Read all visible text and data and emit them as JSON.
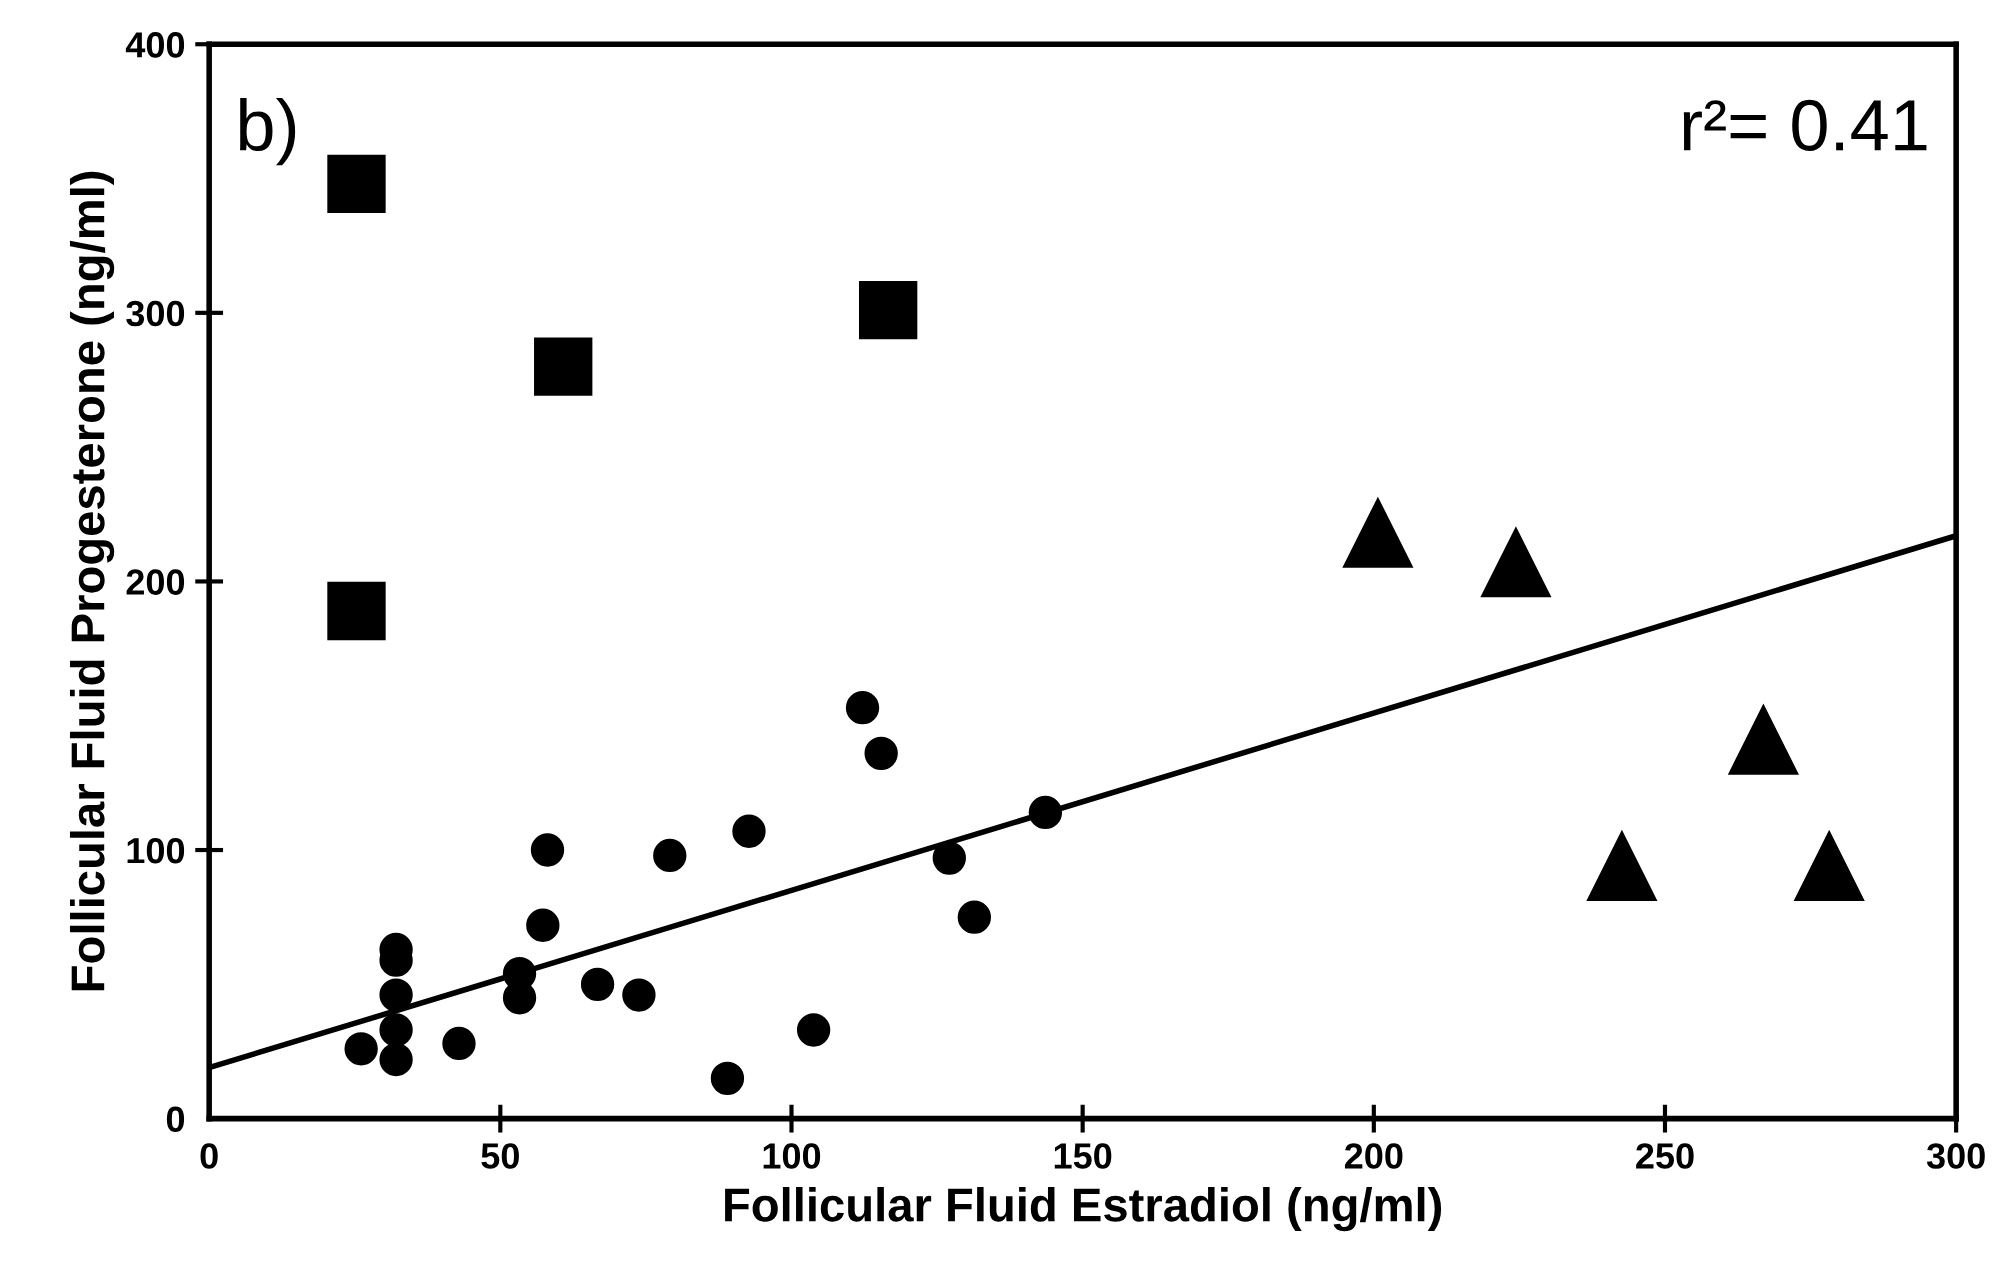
{
  "chart_data": {
    "type": "scatter",
    "xlabel": "Follicular Fluid Estradiol (ng/ml)",
    "ylabel": "Follicular Fluid Progesterone (ng/ml)",
    "xlim": [
      0,
      300
    ],
    "ylim": [
      0,
      400
    ],
    "xticks": [
      0,
      50,
      100,
      150,
      200,
      250,
      300
    ],
    "yticks": [
      0,
      100,
      200,
      300,
      400
    ],
    "grid": false,
    "legend": false,
    "annotations": [
      "b)",
      "r²= 0.41"
    ],
    "series": [
      {
        "marker": "circle",
        "color": "#000000",
        "x": [
          26.1,
          32.1,
          32.1,
          32.1,
          32.1,
          32.1,
          42.9,
          53.3,
          53.3,
          57.3,
          58.1,
          66.7,
          73.8,
          79.1,
          92.7,
          89,
          103.8,
          112.2,
          115.4,
          127.1,
          131.4,
          143.6
        ],
        "values": [
          26,
          22,
          33,
          46,
          59,
          63,
          28,
          45,
          54,
          72,
          100,
          50,
          46,
          98,
          107,
          15,
          33,
          153,
          136,
          97,
          75,
          114
        ]
      },
      {
        "marker": "square",
        "color": "#000000",
        "x": [
          25.3,
          25.3,
          60.8,
          116.6
        ],
        "values": [
          348,
          189,
          280,
          301
        ]
      },
      {
        "marker": "triangle",
        "color": "#000000",
        "x": [
          200.7,
          224.4,
          266.9,
          242.6,
          278.2
        ],
        "values": [
          218,
          207,
          141,
          94,
          94
        ]
      },
      {
        "type": "line",
        "marker": "none",
        "line_style": "solid",
        "color": "#000000",
        "x": [
          0,
          300
        ],
        "values": [
          19,
          217
        ]
      }
    ]
  }
}
